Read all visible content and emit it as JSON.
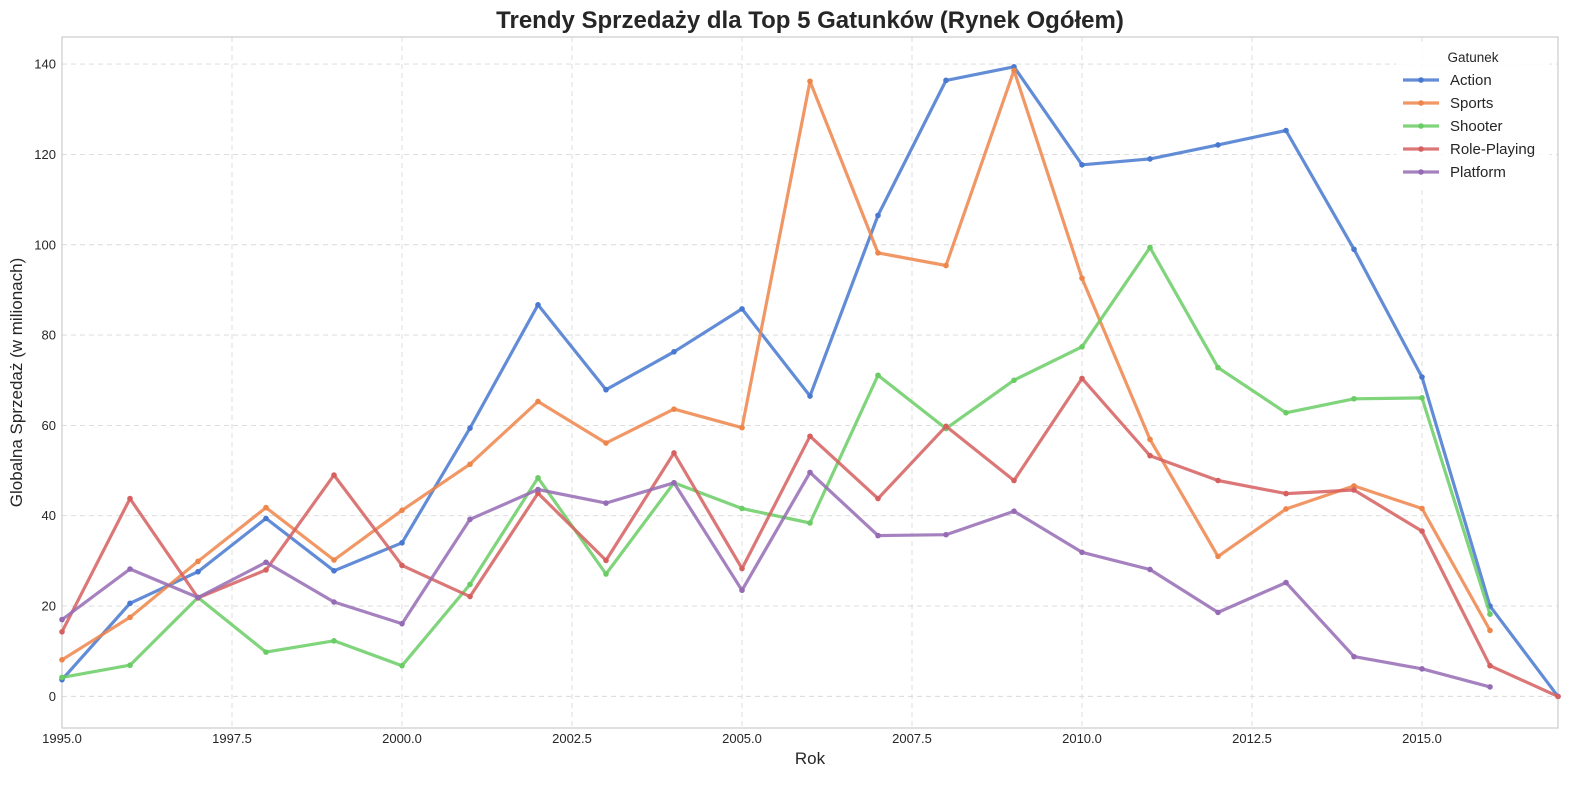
{
  "chart_data": {
    "type": "line",
    "title": "Trendy Sprzedaży dla Top 5 Gatunków (Rynek Ogółem)",
    "xlabel": "Rok",
    "ylabel": "Globalna Sprzedaż (w milionach)",
    "xlim": [
      1995,
      2017
    ],
    "ylim": [
      -7,
      146
    ],
    "xticks": [
      1995.0,
      1997.5,
      2000.0,
      2002.5,
      2005.0,
      2007.5,
      2010.0,
      2012.5,
      2015.0
    ],
    "xtick_labels": [
      "1995.0",
      "1997.5",
      "2000.0",
      "2002.5",
      "2005.0",
      "2007.5",
      "2010.0",
      "2012.5",
      "2015.0"
    ],
    "yticks": [
      0,
      20,
      40,
      60,
      80,
      100,
      120,
      140
    ],
    "ytick_labels": [
      "0",
      "20",
      "40",
      "60",
      "80",
      "100",
      "120",
      "140"
    ],
    "grid": true,
    "legend": {
      "title": "Gatunek",
      "placement": "top-right"
    },
    "x": [
      1995,
      1996,
      1997,
      1998,
      1999,
      2000,
      2001,
      2002,
      2003,
      2004,
      2005,
      2006,
      2007,
      2008,
      2009,
      2010,
      2011,
      2012,
      2013,
      2014,
      2015,
      2016,
      2017
    ],
    "series": [
      {
        "name": "Action",
        "color": "#4878d0",
        "values": [
          3.7,
          20.6,
          27.6,
          39.4,
          27.8,
          34.0,
          59.4,
          86.7,
          67.9,
          76.3,
          85.8,
          66.5,
          106.5,
          136.4,
          139.4,
          117.7,
          119.0,
          122.1,
          125.3,
          99.0,
          70.7,
          20.0,
          0.0
        ]
      },
      {
        "name": "Sports",
        "color": "#ee854a",
        "values": [
          8.1,
          17.5,
          29.9,
          41.8,
          30.2,
          41.2,
          51.4,
          65.3,
          56.1,
          63.6,
          59.5,
          136.2,
          98.2,
          95.4,
          138.6,
          92.6,
          56.9,
          31.0,
          41.5,
          46.6,
          41.6,
          14.6,
          null
        ]
      },
      {
        "name": "Shooter",
        "color": "#6acc64",
        "values": [
          4.2,
          6.9,
          21.9,
          9.8,
          12.3,
          6.8,
          24.8,
          48.4,
          27.1,
          47.3,
          41.6,
          38.4,
          71.1,
          59.3,
          70.0,
          77.4,
          99.4,
          72.8,
          62.8,
          65.9,
          66.1,
          18.2,
          null
        ]
      },
      {
        "name": "Role-Playing",
        "color": "#d65f5f",
        "values": [
          14.3,
          43.8,
          21.8,
          28.0,
          49.0,
          29.0,
          22.1,
          45.0,
          30.1,
          53.9,
          28.3,
          57.6,
          43.8,
          59.8,
          47.8,
          70.4,
          53.3,
          47.8,
          44.9,
          45.7,
          36.6,
          6.8,
          0.0
        ]
      },
      {
        "name": "Platform",
        "color": "#956cb4",
        "values": [
          17.0,
          28.2,
          21.9,
          29.7,
          20.9,
          16.1,
          39.2,
          45.8,
          42.8,
          47.3,
          23.5,
          49.6,
          35.6,
          35.8,
          41.0,
          31.9,
          28.1,
          18.6,
          25.2,
          8.8,
          6.1,
          2.1,
          null
        ]
      }
    ]
  }
}
